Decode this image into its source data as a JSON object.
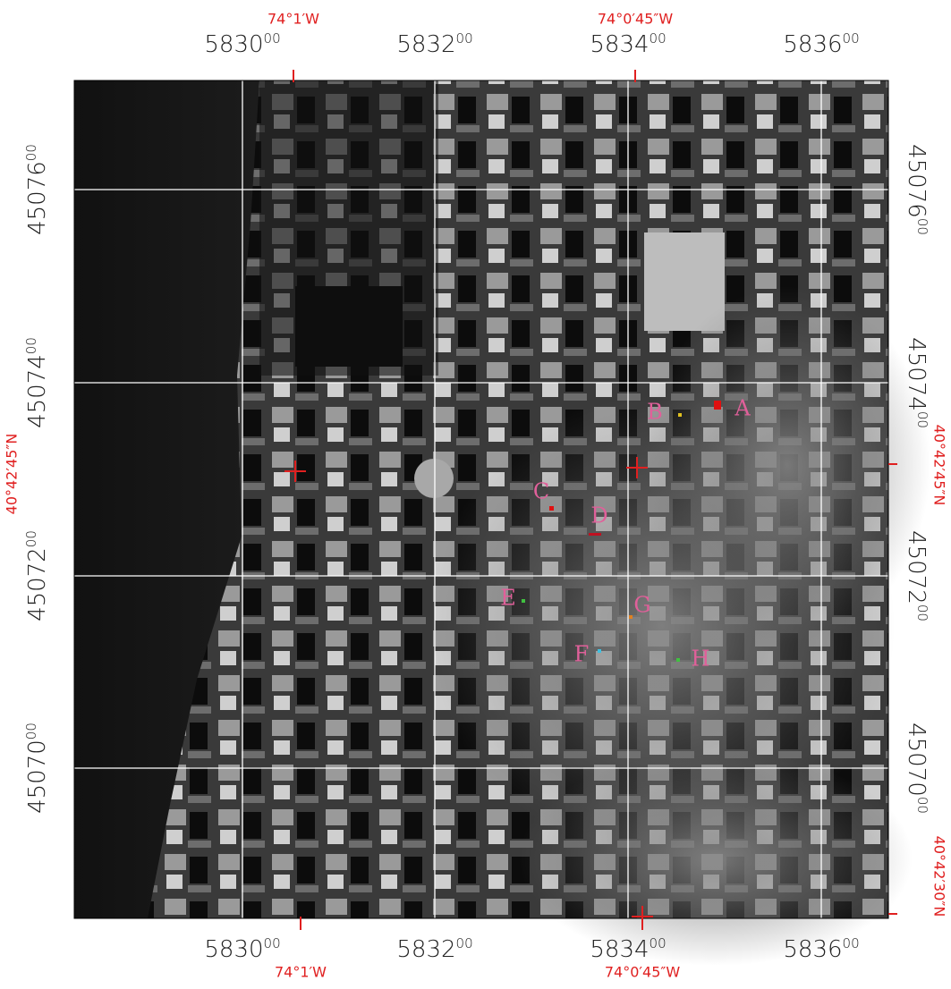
{
  "map": {
    "eastings_top": [
      {
        "main": "5830",
        "minor": "00"
      },
      {
        "main": "5832",
        "minor": "00"
      },
      {
        "main": "5834",
        "minor": "00"
      },
      {
        "main": "5836",
        "minor": "00"
      }
    ],
    "eastings_bottom": [
      {
        "main": "5830",
        "minor": "00"
      },
      {
        "main": "5832",
        "minor": "00"
      },
      {
        "main": "5834",
        "minor": "00"
      },
      {
        "main": "5836",
        "minor": "00"
      }
    ],
    "northings_left": [
      {
        "main": "45076",
        "minor": "00"
      },
      {
        "main": "45074",
        "minor": "00"
      },
      {
        "main": "45072",
        "minor": "00"
      },
      {
        "main": "45070",
        "minor": "00"
      }
    ],
    "northings_right": [
      {
        "main": "45076",
        "minor": "00"
      },
      {
        "main": "45074",
        "minor": "00"
      },
      {
        "main": "45072",
        "minor": "00"
      },
      {
        "main": "45070",
        "minor": "00"
      }
    ],
    "longitude_top": [
      "74°1′W",
      "74°0′45″W"
    ],
    "longitude_bottom": [
      "74°1′W",
      "74°0′45″W"
    ],
    "latitude_left": [
      "40°42′45″N"
    ],
    "latitude_right": [
      "40°42′45″N",
      "40°42′30″N"
    ],
    "markers": [
      "A",
      "B",
      "C",
      "D",
      "E",
      "F",
      "G",
      "H"
    ]
  }
}
